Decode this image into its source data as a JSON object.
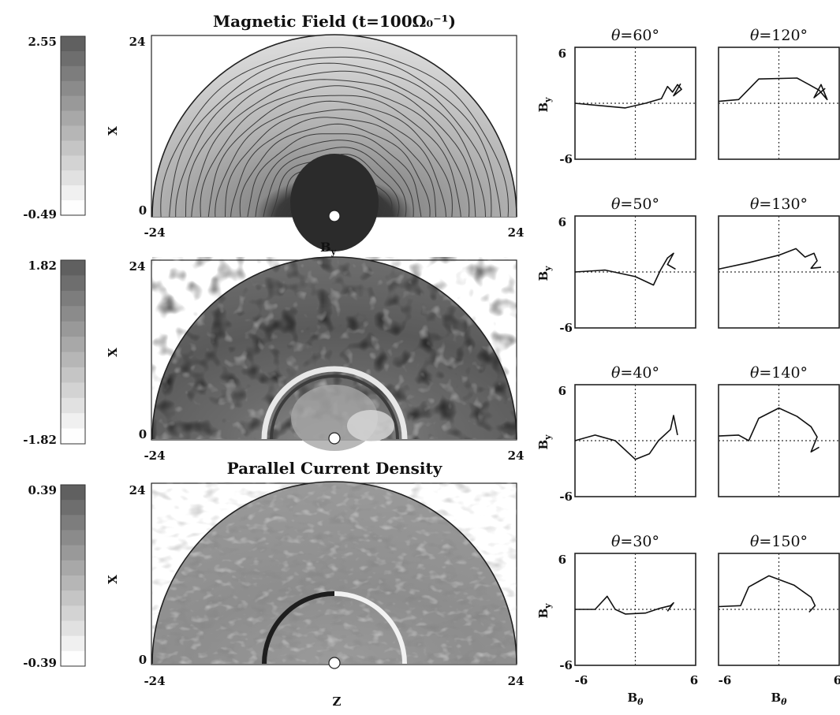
{
  "figure": {
    "panels": [
      {
        "id": "top",
        "title": "Magnetic Field (t=100Ω₀⁻¹)",
        "colorbar": {
          "max": "2.55",
          "min": "-0.49",
          "range": [
            -0.49,
            2.55
          ]
        },
        "axis_label": "X",
        "ticks": {
          "y_top": "24",
          "y_bottom": "0",
          "x_left": "-24",
          "x_right": "24"
        },
        "bottom_label": "B",
        "bottom_label_sub": "y"
      },
      {
        "id": "middle",
        "title": "",
        "colorbar": {
          "max": "1.82",
          "min": "-1.82",
          "range": [
            -1.82,
            1.82
          ]
        },
        "axis_label": "X",
        "ticks": {
          "y_top": "24",
          "y_bottom": "0",
          "x_left": "-24",
          "x_right": "24"
        },
        "bottom_label": "Parallel Current Density",
        "bottom_label_sub": ""
      },
      {
        "id": "bottom",
        "title": "",
        "colorbar": {
          "max": "0.39",
          "min": "-0.39",
          "range": [
            -0.39,
            0.39
          ]
        },
        "axis_label": "X",
        "ticks": {
          "y_top": "24",
          "y_bottom": "0",
          "x_left": "-24",
          "x_right": "24"
        },
        "bottom_label": "Z",
        "bottom_label_sub": ""
      }
    ],
    "hodograms": {
      "y_label": "B",
      "y_label_sub": "y",
      "x_label": "B",
      "x_label_sub": "θ",
      "tick_pos": "6",
      "tick_neg": "-6",
      "range": [
        -6,
        6
      ],
      "theta_prefix": "θ=",
      "degree": "°",
      "rows": [
        [
          {
            "theta": "60"
          },
          {
            "theta": "120"
          }
        ],
        [
          {
            "theta": "50"
          },
          {
            "theta": "130"
          }
        ],
        [
          {
            "theta": "40"
          },
          {
            "theta": "140"
          }
        ],
        [
          {
            "theta": "30"
          },
          {
            "theta": "150"
          }
        ]
      ]
    }
  }
}
